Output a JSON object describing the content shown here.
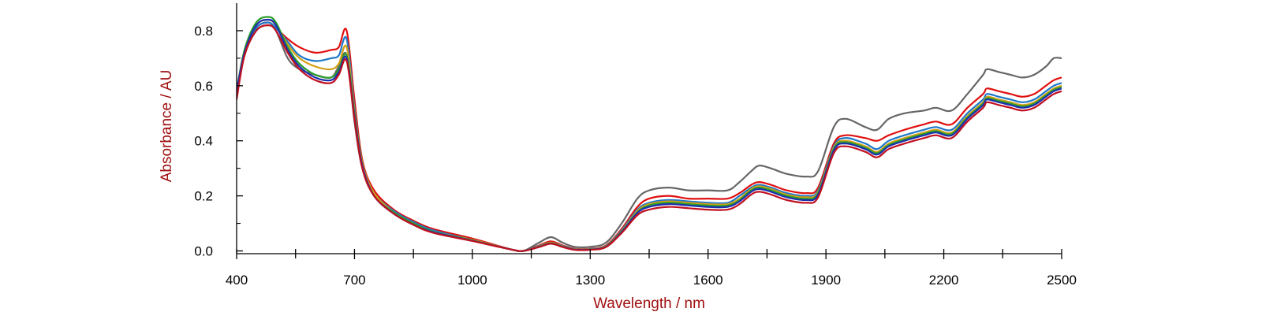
{
  "chart_data": {
    "type": "line",
    "title": "",
    "xlabel": "Wavelength / nm",
    "ylabel": "Absorbance / AU",
    "xlim": [
      400,
      2500
    ],
    "ylim": [
      -0.01,
      0.9
    ],
    "x_ticks": [
      400,
      700,
      1000,
      1300,
      1600,
      1900,
      2200,
      2500
    ],
    "x_tick_labels": [
      "400",
      "700",
      "1000",
      "1300",
      "1600",
      "1900",
      "2200",
      "2500"
    ],
    "y_ticks": [
      0.0,
      0.2,
      0.4,
      0.6,
      0.8
    ],
    "y_tick_labels": [
      "0.0",
      "0.2",
      "0.4",
      "0.6",
      "0.8"
    ],
    "grid": false,
    "legend": "none",
    "x": [
      400,
      420,
      450,
      480,
      500,
      530,
      560,
      600,
      640,
      660,
      680,
      700,
      720,
      750,
      800,
      850,
      900,
      1000,
      1100,
      1130,
      1170,
      1200,
      1230,
      1260,
      1300,
      1340,
      1380,
      1420,
      1450,
      1500,
      1550,
      1600,
      1650,
      1680,
      1710,
      1730,
      1760,
      1800,
      1850,
      1880,
      1920,
      1950,
      2000,
      2030,
      2060,
      2100,
      2150,
      2180,
      2220,
      2260,
      2300,
      2310,
      2340,
      2370,
      2400,
      2430,
      2460,
      2480,
      2500
    ],
    "series": [
      {
        "color": "#666666",
        "values": [
          0.57,
          0.71,
          0.8,
          0.82,
          0.8,
          0.7,
          0.66,
          0.64,
          0.63,
          0.67,
          0.71,
          0.47,
          0.3,
          0.2,
          0.14,
          0.1,
          0.07,
          0.04,
          0.005,
          0.0,
          0.03,
          0.05,
          0.03,
          0.015,
          0.015,
          0.03,
          0.1,
          0.19,
          0.22,
          0.23,
          0.22,
          0.22,
          0.22,
          0.25,
          0.29,
          0.31,
          0.3,
          0.28,
          0.27,
          0.29,
          0.45,
          0.48,
          0.45,
          0.44,
          0.48,
          0.5,
          0.51,
          0.52,
          0.51,
          0.57,
          0.64,
          0.66,
          0.65,
          0.64,
          0.63,
          0.64,
          0.67,
          0.7,
          0.7
        ]
      },
      {
        "color": "#e01010",
        "values": [
          0.58,
          0.72,
          0.81,
          0.83,
          0.81,
          0.77,
          0.74,
          0.72,
          0.73,
          0.74,
          0.8,
          0.55,
          0.33,
          0.22,
          0.15,
          0.11,
          0.08,
          0.045,
          0.005,
          0.0,
          0.02,
          0.035,
          0.02,
          0.008,
          0.008,
          0.02,
          0.08,
          0.16,
          0.19,
          0.2,
          0.19,
          0.19,
          0.19,
          0.21,
          0.24,
          0.25,
          0.24,
          0.22,
          0.21,
          0.23,
          0.39,
          0.42,
          0.41,
          0.4,
          0.42,
          0.44,
          0.46,
          0.47,
          0.46,
          0.52,
          0.57,
          0.59,
          0.58,
          0.57,
          0.56,
          0.57,
          0.6,
          0.62,
          0.63
        ]
      },
      {
        "color": "#1f78c8",
        "values": [
          0.58,
          0.72,
          0.81,
          0.83,
          0.81,
          0.76,
          0.71,
          0.69,
          0.7,
          0.71,
          0.77,
          0.52,
          0.32,
          0.21,
          0.145,
          0.105,
          0.075,
          0.04,
          0.005,
          0.0,
          0.018,
          0.03,
          0.018,
          0.007,
          0.007,
          0.018,
          0.075,
          0.15,
          0.175,
          0.185,
          0.18,
          0.175,
          0.175,
          0.2,
          0.23,
          0.24,
          0.23,
          0.21,
          0.2,
          0.22,
          0.38,
          0.41,
          0.39,
          0.37,
          0.4,
          0.42,
          0.44,
          0.45,
          0.44,
          0.5,
          0.55,
          0.57,
          0.56,
          0.55,
          0.54,
          0.55,
          0.58,
          0.6,
          0.61
        ]
      },
      {
        "color": "#d4a017",
        "values": [
          0.58,
          0.72,
          0.82,
          0.84,
          0.82,
          0.75,
          0.7,
          0.67,
          0.66,
          0.68,
          0.74,
          0.51,
          0.32,
          0.21,
          0.14,
          0.1,
          0.07,
          0.04,
          0.005,
          0.0,
          0.017,
          0.03,
          0.017,
          0.006,
          0.006,
          0.017,
          0.072,
          0.145,
          0.17,
          0.18,
          0.175,
          0.17,
          0.17,
          0.19,
          0.225,
          0.235,
          0.225,
          0.205,
          0.195,
          0.215,
          0.375,
          0.4,
          0.38,
          0.36,
          0.39,
          0.41,
          0.43,
          0.44,
          0.43,
          0.49,
          0.54,
          0.56,
          0.55,
          0.54,
          0.53,
          0.54,
          0.57,
          0.59,
          0.6
        ]
      },
      {
        "color": "#2a9d2a",
        "values": [
          0.58,
          0.73,
          0.83,
          0.85,
          0.83,
          0.74,
          0.68,
          0.64,
          0.63,
          0.66,
          0.71,
          0.5,
          0.31,
          0.2,
          0.14,
          0.1,
          0.07,
          0.038,
          0.005,
          0.0,
          0.016,
          0.028,
          0.016,
          0.005,
          0.005,
          0.016,
          0.07,
          0.14,
          0.165,
          0.175,
          0.17,
          0.165,
          0.165,
          0.185,
          0.22,
          0.23,
          0.22,
          0.2,
          0.19,
          0.21,
          0.37,
          0.395,
          0.375,
          0.355,
          0.385,
          0.405,
          0.425,
          0.435,
          0.425,
          0.485,
          0.535,
          0.555,
          0.545,
          0.535,
          0.525,
          0.535,
          0.565,
          0.585,
          0.595
        ]
      },
      {
        "color": "#1a2fb0",
        "values": [
          0.58,
          0.72,
          0.82,
          0.84,
          0.82,
          0.73,
          0.67,
          0.63,
          0.62,
          0.65,
          0.7,
          0.49,
          0.31,
          0.2,
          0.135,
          0.095,
          0.068,
          0.037,
          0.005,
          0.0,
          0.015,
          0.027,
          0.015,
          0.005,
          0.005,
          0.015,
          0.068,
          0.138,
          0.16,
          0.17,
          0.165,
          0.16,
          0.16,
          0.18,
          0.215,
          0.225,
          0.215,
          0.195,
          0.185,
          0.205,
          0.365,
          0.39,
          0.37,
          0.35,
          0.38,
          0.4,
          0.42,
          0.43,
          0.42,
          0.48,
          0.53,
          0.55,
          0.54,
          0.53,
          0.52,
          0.53,
          0.56,
          0.58,
          0.59
        ]
      },
      {
        "color": "#c01020",
        "values": [
          0.55,
          0.71,
          0.8,
          0.82,
          0.8,
          0.72,
          0.66,
          0.62,
          0.61,
          0.64,
          0.69,
          0.48,
          0.3,
          0.2,
          0.135,
          0.095,
          0.066,
          0.036,
          0.005,
          0.0,
          0.014,
          0.026,
          0.014,
          0.004,
          0.004,
          0.014,
          0.065,
          0.13,
          0.15,
          0.16,
          0.155,
          0.15,
          0.15,
          0.17,
          0.205,
          0.215,
          0.205,
          0.185,
          0.175,
          0.195,
          0.355,
          0.38,
          0.36,
          0.34,
          0.37,
          0.39,
          0.41,
          0.42,
          0.41,
          0.47,
          0.52,
          0.54,
          0.53,
          0.52,
          0.51,
          0.52,
          0.55,
          0.57,
          0.58
        ]
      }
    ]
  }
}
